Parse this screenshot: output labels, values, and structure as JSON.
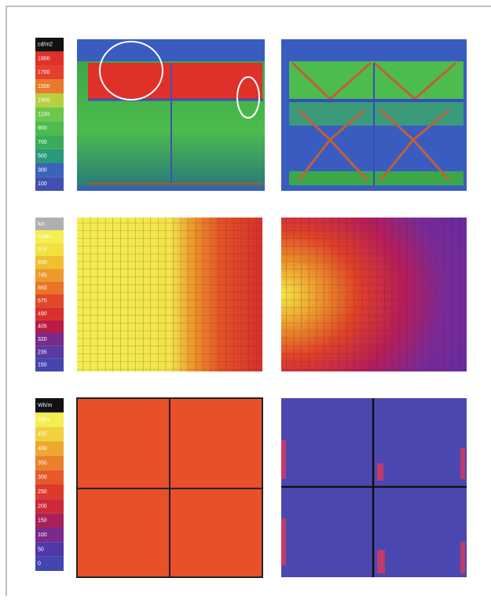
{
  "legends": [
    {
      "items": [
        {
          "label": "cd/m2",
          "color": "#111111"
        },
        {
          "label": "1900",
          "color": "#e0302a"
        },
        {
          "label": "1700",
          "color": "#e4402e"
        },
        {
          "label": "1500",
          "color": "#e87a2a"
        },
        {
          "label": "1300",
          "color": "#b8d040"
        },
        {
          "label": "1100",
          "color": "#6cc84a"
        },
        {
          "label": "900",
          "color": "#4cbc4c"
        },
        {
          "label": "700",
          "color": "#3aac58"
        },
        {
          "label": "500",
          "color": "#2a9a7a"
        },
        {
          "label": "300",
          "color": "#3a64b8"
        },
        {
          "label": "100",
          "color": "#4050b0"
        }
      ]
    },
    {
      "items": [
        {
          "label": "lux",
          "color": "#b0b0b0"
        },
        {
          "label": "1000+",
          "color": "#f4ee50"
        },
        {
          "label": "915",
          "color": "#f2e040"
        },
        {
          "label": "830",
          "color": "#f0c030"
        },
        {
          "label": "745",
          "color": "#ec9a2a"
        },
        {
          "label": "660",
          "color": "#e87428"
        },
        {
          "label": "575",
          "color": "#e04828"
        },
        {
          "label": "490",
          "color": "#d8302c"
        },
        {
          "label": "405",
          "color": "#b81c44"
        },
        {
          "label": "320",
          "color": "#7a2a8a"
        },
        {
          "label": "235",
          "color": "#5a3aa0"
        },
        {
          "label": "150",
          "color": "#4446b0"
        }
      ]
    },
    {
      "items": [
        {
          "label": "Wh/m",
          "color": "#111111"
        },
        {
          "label": "500+",
          "color": "#f4ee50"
        },
        {
          "label": "450",
          "color": "#f2d040"
        },
        {
          "label": "400",
          "color": "#eea832"
        },
        {
          "label": "350",
          "color": "#ea802c"
        },
        {
          "label": "300",
          "color": "#e65a2a"
        },
        {
          "label": "250",
          "color": "#dc3a2c"
        },
        {
          "label": "200",
          "color": "#cc2a38"
        },
        {
          "label": "150",
          "color": "#a8205a"
        },
        {
          "label": "100",
          "color": "#7a2a8c"
        },
        {
          "label": "50",
          "color": "#5038a8"
        },
        {
          "label": "0",
          "color": "#4246b0"
        }
      ]
    }
  ]
}
